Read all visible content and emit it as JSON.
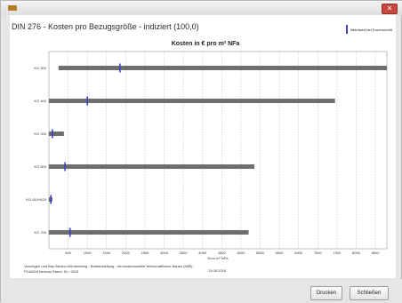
{
  "window": {
    "heading": "DIN 276 - Kosten pro Bezugsgröße - indiziert (100,0)"
  },
  "legend": {
    "label": "Mittelwert bei Durchschnitt",
    "color": "#3f3fc8"
  },
  "footer": {
    "line1": "Vermögen und Bau Baden-Württemberg - Betriebsleitung - Informationsstelle Wirtschaftliches Bauen (IWB)",
    "line2": "PLANDA Neubau   Stand: 01 / 2015",
    "date": "13.05.2015"
  },
  "buttons": {
    "print": "Drucken",
    "close": "Schließen"
  },
  "chart_data": {
    "type": "bar",
    "title": "Kosten in € pro m² NFa",
    "xlabel": "Euro m² NFa",
    "categories": [
      "KG 300",
      "KG 400",
      "KG 200",
      "KG 500",
      "KG 610+620",
      "KG 700"
    ],
    "ranges": [
      [
        250,
        8800
      ],
      [
        0,
        7450
      ],
      [
        0,
        390
      ],
      [
        0,
        5350
      ],
      [
        0,
        90
      ],
      [
        0,
        5200
      ]
    ],
    "means": [
      1850,
      1000,
      90,
      420,
      50,
      550
    ],
    "xlim": [
      0,
      8800
    ],
    "xticks": [
      500,
      1000,
      1500,
      2000,
      2500,
      3000,
      3500,
      4000,
      4500,
      5000,
      5500,
      6000,
      6500,
      7000,
      7500,
      8000,
      8500
    ],
    "grid": true,
    "bar_color": "#6e6e6e",
    "mean_color": "#3f3fc8",
    "legend_position": "top-right"
  }
}
